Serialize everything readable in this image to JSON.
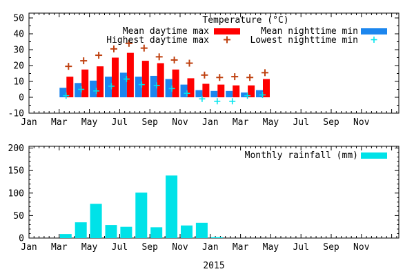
{
  "chart_data": [
    {
      "type": "bar",
      "title": "Temperature (°C)",
      "xlabel": "",
      "ylabel": "",
      "ylim": [
        -10,
        53
      ],
      "yticks": [
        -10,
        0,
        10,
        20,
        30,
        40,
        50
      ],
      "grid": false,
      "legend_position": "top-inside-two-columns",
      "x_axis": {
        "range": [
          "Jan 2015",
          "Dec 2016"
        ],
        "tick_labels": [
          "Jan",
          "Mar",
          "May",
          "Jul",
          "Sep",
          "Nov",
          "Jan",
          "Mar",
          "May",
          "Jul",
          "Sep",
          "Nov"
        ]
      },
      "months": [
        "2015-03",
        "2015-04",
        "2015-05",
        "2015-06",
        "2015-07",
        "2015-08",
        "2015-09",
        "2015-10",
        "2015-11",
        "2015-12",
        "2016-01",
        "2016-02",
        "2016-03",
        "2016-04"
      ],
      "series": [
        {
          "name": "Mean daytime max",
          "style": "bar",
          "color": "#ff0000",
          "values": [
            13,
            17.5,
            19.5,
            25,
            28,
            23,
            21.5,
            17.5,
            12,
            8.5,
            8,
            7.5,
            7.5,
            11.5
          ]
        },
        {
          "name": "Mean nighttime min",
          "style": "bar",
          "color": "#1c86ee",
          "values": [
            6,
            9,
            10.5,
            13,
            15.5,
            13,
            13.5,
            11.5,
            8,
            4.5,
            4,
            4,
            3,
            4.5
          ]
        },
        {
          "name": "Highest daytime max",
          "style": "plus",
          "color": "#bf400f",
          "values": [
            19.5,
            23,
            26.5,
            30.5,
            34,
            31,
            25.5,
            23.5,
            21.5,
            14,
            12.5,
            13,
            12.5,
            15.5
          ]
        },
        {
          "name": "Lowest nighttime min",
          "style": "plus",
          "color": "#00e5ee",
          "values": [
            1,
            5,
            4,
            7,
            11.5,
            8,
            7.5,
            5.5,
            2.5,
            -1,
            -2.5,
            -2.5,
            1,
            1.5
          ]
        }
      ]
    },
    {
      "type": "bar",
      "title": "Monthly rainfall (mm)",
      "xlabel": "2015",
      "ylabel": "",
      "ylim": [
        0,
        204
      ],
      "yticks": [
        0,
        50,
        100,
        150,
        200
      ],
      "grid": false,
      "legend_position": "top-right-inside",
      "x_axis": {
        "range": [
          "Jan 2015",
          "Dec 2016"
        ],
        "tick_labels": [
          "Jan",
          "Mar",
          "May",
          "Jul",
          "Sep",
          "Nov",
          "Jan",
          "Mar",
          "May",
          "Jul",
          "Sep",
          "Nov"
        ]
      },
      "months": [
        "2015-03",
        "2015-04",
        "2015-05",
        "2015-06",
        "2015-07",
        "2015-08",
        "2015-09",
        "2015-10",
        "2015-11",
        "2015-12",
        "2016-01"
      ],
      "series": [
        {
          "name": "Monthly rainfall (mm)",
          "style": "bar",
          "color": "#00e2e8",
          "values": [
            9,
            35,
            76,
            29,
            25,
            101,
            24,
            139,
            28,
            34,
            2
          ]
        }
      ]
    }
  ]
}
